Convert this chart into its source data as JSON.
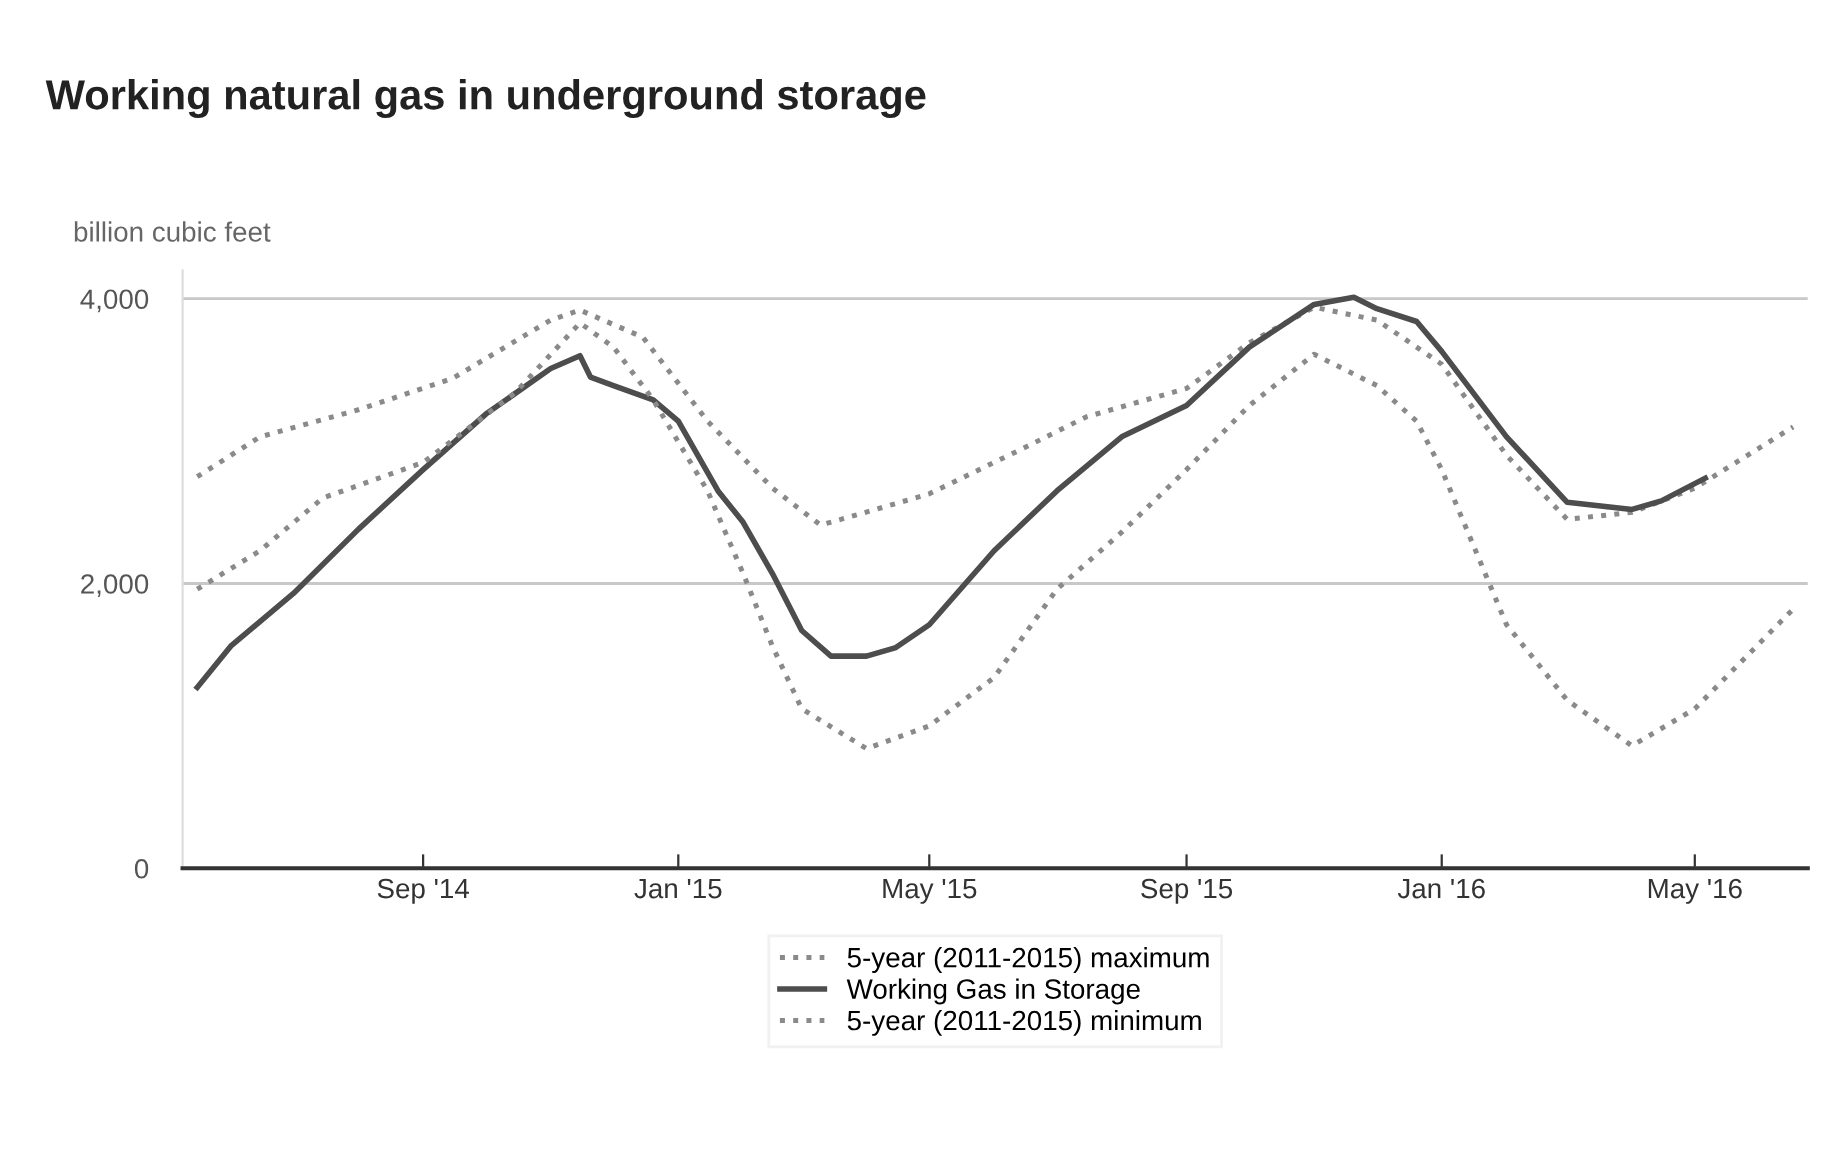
{
  "chart_data": {
    "type": "line",
    "title": "Working natural gas in underground storage",
    "ylabel": "billion cubic feet",
    "xlim": [
      "2014-05-09",
      "2016-06-24"
    ],
    "ylim": [
      0,
      4200
    ],
    "xticks": [
      {
        "value": "2014-09-01",
        "label": "Sep '14"
      },
      {
        "value": "2015-01-01",
        "label": "Jan '15"
      },
      {
        "value": "2015-05-01",
        "label": "May '15"
      },
      {
        "value": "2015-09-01",
        "label": "Sep '15"
      },
      {
        "value": "2016-01-01",
        "label": "Jan '16"
      },
      {
        "value": "2016-05-01",
        "label": "May '16"
      }
    ],
    "yticks": [
      0,
      {
        "value": 2000,
        "label": "2,000"
      },
      {
        "value": 4000,
        "label": "4,000"
      }
    ],
    "grid": "y",
    "legend": "bottom",
    "marker": "none",
    "series": [
      {
        "name": "5-year (2011-2015) maximum",
        "color": "#8a8a8a",
        "line_style": "dotted",
        "x": [
          "2014-05-16",
          "2014-06-15",
          "2014-08-01",
          "2014-09-15",
          "2014-11-01",
          "2014-11-15",
          "2014-12-15",
          "2015-01-15",
          "2015-02-15",
          "2015-03-10",
          "2015-04-03",
          "2015-05-01",
          "2015-06-15",
          "2015-07-15",
          "2015-09-01",
          "2015-10-01",
          "2015-11-01",
          "2015-12-01",
          "2016-01-01",
          "2016-02-01",
          "2016-03-01",
          "2016-04-01",
          "2016-05-01",
          "2016-06-17"
        ],
        "values": [
          2750,
          3030,
          3220,
          3440,
          3850,
          3920,
          3730,
          3140,
          2670,
          2410,
          2510,
          2630,
          2950,
          3170,
          3370,
          3690,
          3940,
          3850,
          3540,
          2900,
          2450,
          2500,
          2670,
          3100
        ]
      },
      {
        "name": "Working Gas in Storage",
        "color": "#4d4d4d",
        "line_style": "solid",
        "x": [
          "2014-05-16",
          "2014-06-01",
          "2014-07-01",
          "2014-08-01",
          "2014-09-01",
          "2014-10-01",
          "2014-11-01",
          "2014-11-15",
          "2014-11-20",
          "2014-12-01",
          "2014-12-20",
          "2015-01-01",
          "2015-01-20",
          "2015-02-01",
          "2015-02-15",
          "2015-03-01",
          "2015-03-15",
          "2015-04-01",
          "2015-04-15",
          "2015-05-01",
          "2015-06-01",
          "2015-07-01",
          "2015-08-01",
          "2015-09-01",
          "2015-10-01",
          "2015-11-01",
          "2015-11-20",
          "2015-12-01",
          "2015-12-20",
          "2016-01-01",
          "2016-02-01",
          "2016-03-01",
          "2016-04-01",
          "2016-04-15",
          "2016-05-06"
        ],
        "values": [
          1270,
          1560,
          1930,
          2380,
          2800,
          3190,
          3510,
          3600,
          3450,
          3390,
          3290,
          3140,
          2650,
          2430,
          2070,
          1670,
          1490,
          1490,
          1550,
          1710,
          2230,
          2650,
          3030,
          3250,
          3660,
          3960,
          4010,
          3930,
          3840,
          3630,
          3030,
          2570,
          2520,
          2580,
          2740
        ]
      },
      {
        "name": "5-year (2011-2015) minimum",
        "color": "#8a8a8a",
        "line_style": "dotted",
        "x": [
          "2014-05-16",
          "2014-06-15",
          "2014-07-15",
          "2014-09-01",
          "2014-10-15",
          "2014-11-15",
          "2014-12-01",
          "2014-12-20",
          "2015-01-15",
          "2015-02-01",
          "2015-02-15",
          "2015-03-01",
          "2015-04-01",
          "2015-05-01",
          "2015-06-01",
          "2015-07-01",
          "2015-08-01",
          "2015-09-01",
          "2015-10-01",
          "2015-11-01",
          "2015-12-01",
          "2015-12-20",
          "2016-01-01",
          "2016-02-01",
          "2016-03-01",
          "2016-04-01",
          "2016-05-01",
          "2016-06-17"
        ],
        "values": [
          1960,
          2230,
          2600,
          2850,
          3340,
          3830,
          3660,
          3290,
          2650,
          2070,
          1560,
          1120,
          840,
          1000,
          1340,
          1960,
          2360,
          2800,
          3250,
          3610,
          3390,
          3140,
          2800,
          1710,
          1180,
          860,
          1120,
          1820
        ]
      }
    ]
  }
}
